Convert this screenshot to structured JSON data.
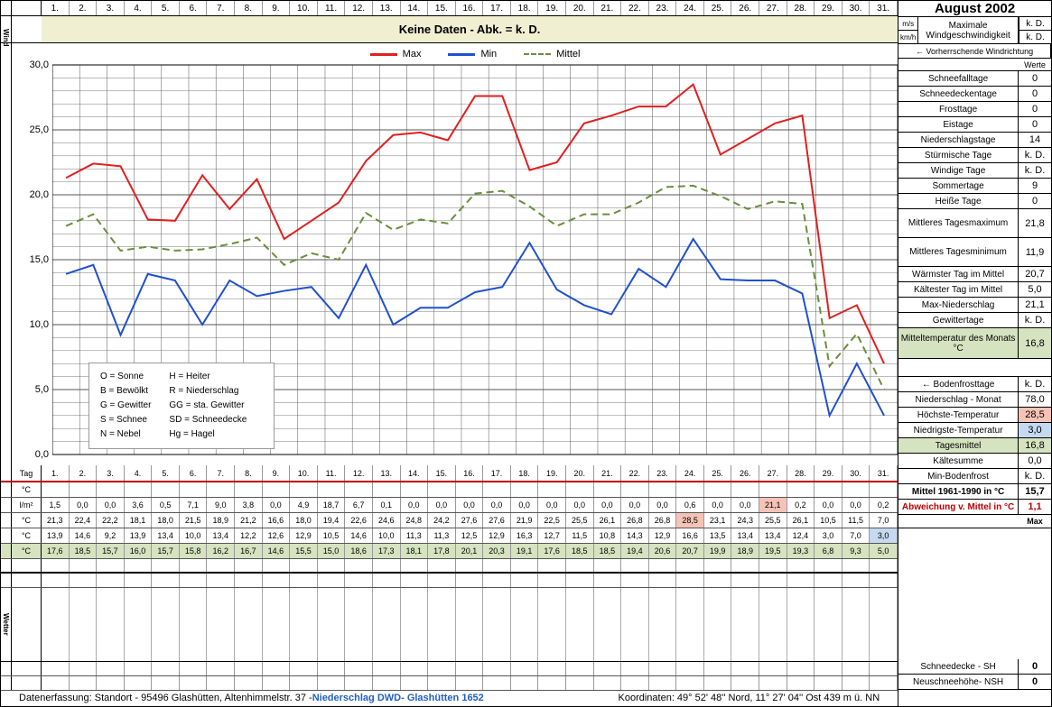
{
  "title": "August 2002",
  "days": [
    "1.",
    "2.",
    "3.",
    "4.",
    "5.",
    "6.",
    "7.",
    "8.",
    "9.",
    "10.",
    "11.",
    "12.",
    "13.",
    "14.",
    "15.",
    "16.",
    "17.",
    "18.",
    "19.",
    "20.",
    "21.",
    "22.",
    "23.",
    "24.",
    "25.",
    "26.",
    "27.",
    "28.",
    "29.",
    "30.",
    "31."
  ],
  "wind_banner": "Keine Daten - Abk. = k. D.",
  "wind_label": "Wind",
  "chart": {
    "type": "line",
    "ylim": [
      0,
      30
    ],
    "ytick_step": 5,
    "y_ticks": [
      "0,0",
      "5,0",
      "10,0",
      "15,0",
      "20,0",
      "25,0",
      "30,0"
    ],
    "grid_color": "#555555",
    "background_color": "#ffffff",
    "series": [
      {
        "name": "Max",
        "color": "#e02020",
        "width": 2,
        "dash": "none",
        "values": [
          21.3,
          22.4,
          22.2,
          18.1,
          18.0,
          21.5,
          18.9,
          21.2,
          16.6,
          18.0,
          19.4,
          22.6,
          24.6,
          24.8,
          24.2,
          27.6,
          27.6,
          21.9,
          22.5,
          25.5,
          26.1,
          26.8,
          26.8,
          28.5,
          23.1,
          24.3,
          25.5,
          26.1,
          10.5,
          11.5,
          7.0
        ]
      },
      {
        "name": "Min",
        "color": "#2050d0",
        "width": 2,
        "dash": "none",
        "values": [
          13.9,
          14.6,
          9.2,
          13.9,
          13.4,
          10.0,
          13.4,
          12.2,
          12.6,
          12.9,
          10.5,
          14.6,
          10.0,
          11.3,
          11.3,
          12.5,
          12.9,
          16.3,
          12.7,
          11.5,
          10.8,
          14.3,
          12.9,
          16.6,
          13.5,
          13.4,
          13.4,
          12.4,
          3.0,
          7.0,
          3.0
        ]
      },
      {
        "name": "Mittel",
        "color": "#6b8e3d",
        "width": 2,
        "dash": "8,5",
        "values": [
          17.6,
          18.5,
          15.7,
          16.0,
          15.7,
          15.8,
          16.2,
          16.7,
          14.6,
          15.5,
          15.0,
          18.6,
          17.3,
          18.1,
          17.8,
          20.1,
          20.3,
          19.1,
          17.6,
          18.5,
          18.5,
          19.4,
          20.6,
          20.7,
          19.9,
          18.9,
          19.5,
          19.3,
          6.8,
          9.3,
          5.0
        ]
      }
    ],
    "legend_labels": [
      "Max",
      "Min",
      "Mittel"
    ]
  },
  "weather_legend": {
    "col1": [
      "O = Sonne",
      "B = Bewölkt",
      "G = Gewitter",
      "S = Schnee",
      "N = Nebel"
    ],
    "col2": [
      "H = Heiter",
      "R = Niederschlag",
      "GG = sta. Gewitter",
      "SD = Schneedecke",
      "Hg = Hagel"
    ]
  },
  "table": {
    "tag_label": "Tag",
    "rows_meta": [
      {
        "label": "°C",
        "empty": true
      },
      {
        "label": "l/m²",
        "key": "precip"
      },
      {
        "label": "°C",
        "key": "max",
        "highlight_idx": 23,
        "highlight_class": "hl-pink"
      },
      {
        "label": "°C",
        "key": "min",
        "highlight_idx": 30,
        "highlight_class": "hl-blue"
      },
      {
        "label": "°C",
        "key": "mittel",
        "row_class": "hl-green"
      }
    ],
    "precip": [
      "1,5",
      "0,0",
      "0,0",
      "3,6",
      "0,5",
      "7,1",
      "9,0",
      "3,8",
      "0,0",
      "4,9",
      "18,7",
      "6,7",
      "0,1",
      "0,0",
      "0,0",
      "0,0",
      "0,0",
      "0,0",
      "0,0",
      "0,0",
      "0,0",
      "0,0",
      "0,0",
      "0,6",
      "0,0",
      "0,0",
      "21,1",
      "0,2",
      "0,0",
      "0,0",
      "0,2"
    ],
    "precip_highlight_idx": 26,
    "precip_highlight_class": "hl-pink",
    "max": [
      "21,3",
      "22,4",
      "22,2",
      "18,1",
      "18,0",
      "21,5",
      "18,9",
      "21,2",
      "16,6",
      "18,0",
      "19,4",
      "22,6",
      "24,6",
      "24,8",
      "24,2",
      "27,6",
      "27,6",
      "21,9",
      "22,5",
      "25,5",
      "26,1",
      "26,8",
      "26,8",
      "28,5",
      "23,1",
      "24,3",
      "25,5",
      "26,1",
      "10,5",
      "11,5",
      "7,0"
    ],
    "min": [
      "13,9",
      "14,6",
      "9,2",
      "13,9",
      "13,4",
      "10,0",
      "13,4",
      "12,2",
      "12,6",
      "12,9",
      "10,5",
      "14,6",
      "10,0",
      "11,3",
      "11,3",
      "12,5",
      "12,9",
      "16,3",
      "12,7",
      "11,5",
      "10,8",
      "14,3",
      "12,9",
      "16,6",
      "13,5",
      "13,4",
      "13,4",
      "12,4",
      "3,0",
      "7,0",
      "3,0"
    ],
    "mittel": [
      "17,6",
      "18,5",
      "15,7",
      "16,0",
      "15,7",
      "15,8",
      "16,2",
      "16,7",
      "14,6",
      "15,5",
      "15,0",
      "18,6",
      "17,3",
      "18,1",
      "17,8",
      "20,1",
      "20,3",
      "19,1",
      "17,6",
      "18,5",
      "18,5",
      "19,4",
      "20,6",
      "20,7",
      "19,9",
      "18,9",
      "19,5",
      "19,3",
      "6,8",
      "9,3",
      "5,0"
    ]
  },
  "side_panel": {
    "wind_rows": [
      {
        "unit": "m/s",
        "label": "Maximale",
        "val": "k. D."
      },
      {
        "unit": "km/h",
        "label": "Windgeschwindigkeit",
        "val": "k. D."
      }
    ],
    "wind_dir": "← Vorherrschende Windrichtung",
    "werte_header": "Werte",
    "stats": [
      {
        "label": "Schneefalltage",
        "val": "0"
      },
      {
        "label": "Schneedeckentage",
        "val": "0"
      },
      {
        "label": "Frosttage",
        "val": "0"
      },
      {
        "label": "Eistage",
        "val": "0"
      },
      {
        "label": "Niederschlagstage",
        "val": "14"
      },
      {
        "label": "Stürmische Tage",
        "val": "k. D."
      },
      {
        "label": "Windige Tage",
        "val": "k. D."
      },
      {
        "label": "Sommertage",
        "val": "9"
      },
      {
        "label": "Heiße Tage",
        "val": "0"
      }
    ],
    "stats2": [
      {
        "label": "Mittleres Tagesmaximum",
        "val": "21,8",
        "h": 32
      },
      {
        "label": "Mittleres Tagesminimum",
        "val": "11,9",
        "h": 32
      },
      {
        "label": "Wärmster Tag im Mittel",
        "val": "20,7"
      },
      {
        "label": "Kältester Tag im Mittel",
        "val": "5,0"
      },
      {
        "label": "Max-Niederschlag",
        "val": "21,1"
      },
      {
        "label": "Gewittertage",
        "val": "k. D."
      }
    ],
    "monthly_temp": {
      "label": "Mitteltemperatur des Monats °C",
      "val": "16,8"
    },
    "bodenfrost": {
      "label": "← Bodenfrosttage",
      "val": "k. D."
    },
    "summary_rows": [
      {
        "label": "Niederschlag - Monat",
        "val": "78,0"
      },
      {
        "label": "Höchste-Temperatur",
        "val": "28,5",
        "val_class": "hl-pink"
      },
      {
        "label": "Niedrigste-Temperatur",
        "val": "3,0",
        "val_class": "hl-blue"
      },
      {
        "label": "Tagesmittel",
        "val": "16,8",
        "row_class": "hl-green"
      },
      {
        "label": "Kältesumme",
        "val": "0,0"
      },
      {
        "label": "Min-Bodenfrost",
        "val": "k. D."
      }
    ],
    "mittel_ref": {
      "label": "Mittel 1961-1990 in °C",
      "val": "15,7"
    },
    "abweichung": {
      "label": "Abweichung v. Mittel in °C",
      "val": "1,1"
    },
    "max_header": "Max",
    "snow_rows": [
      {
        "label": "Schneedecke -   SH",
        "val": "0"
      },
      {
        "label": "Neuschneehöhe- NSH",
        "val": "0"
      }
    ]
  },
  "footer": {
    "prefix": "Datenerfassung:  Standort -   95496  Glashütten, Altenhimmelstr. 37 - ",
    "dwd": "Niederschlag DWD- Glashütten 1652",
    "coords": "Koordinaten:   49° 52' 48'' Nord,    11° 27' 04'' Ost    439 m ü. NN"
  },
  "wetter_label": "Wetter"
}
